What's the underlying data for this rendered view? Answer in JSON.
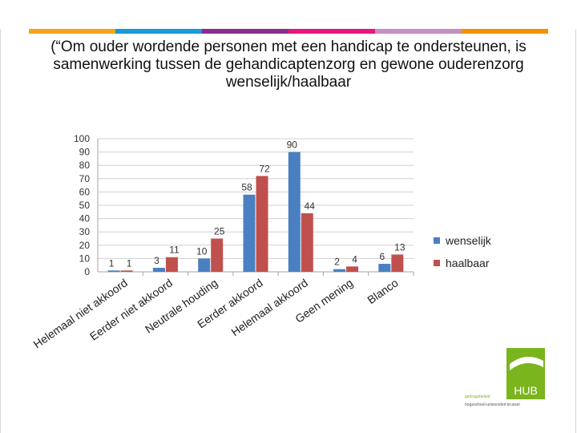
{
  "slide": {
    "title": "(“Om ouder wordende personen met een handicap te ondersteunen, is samenwerking tussen de gehandicaptenzorg en gewone ouderenzorg wenselijk/haalbaar",
    "accent_colors": [
      "#f4a51c",
      "#1a9ad6",
      "#8b2d8c",
      "#e5177e",
      "#c58fc2",
      "#f39200"
    ]
  },
  "logo": {
    "text": "HUB",
    "color": "#7ab51d",
    "caption_line1": "gedragsbeleid",
    "caption_line2": "hogeschool-universiteit brussel"
  },
  "chart_data": {
    "type": "bar",
    "categories": [
      "Helemaal niet akkoord",
      "Eerder niet akkoord",
      "Neutrale houding",
      "Eerder akkoord",
      "Helemaal akkoord",
      "Geen mening",
      "Blanco"
    ],
    "series": [
      {
        "name": "wenselijk",
        "values": [
          1,
          3,
          10,
          58,
          90,
          2,
          6
        ],
        "color": "#4a7fc1"
      },
      {
        "name": "haalbaar",
        "values": [
          1,
          11,
          25,
          72,
          44,
          4,
          13
        ],
        "color": "#c0504d"
      }
    ],
    "ylim": [
      0,
      100
    ],
    "yticks": [
      0,
      10,
      20,
      30,
      40,
      50,
      60,
      70,
      80,
      90,
      100
    ],
    "grid": true,
    "legend": "right",
    "data_labels": true
  }
}
